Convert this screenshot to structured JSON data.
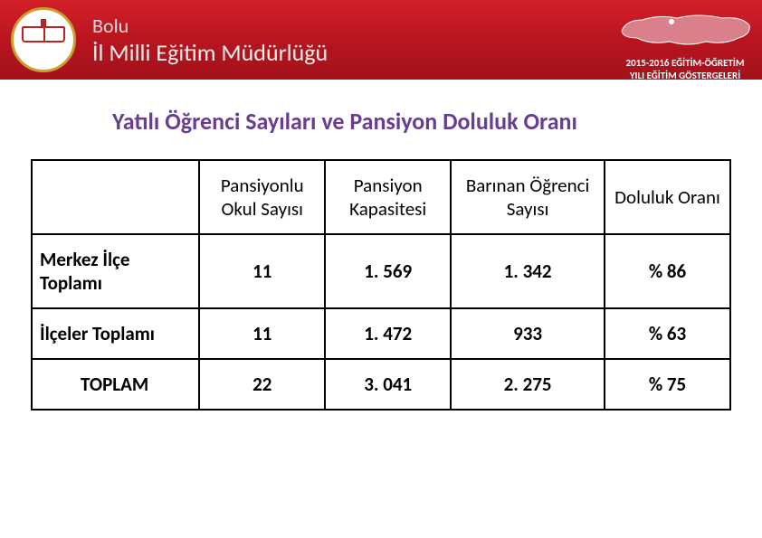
{
  "header": {
    "province": "Bolu",
    "org": "İl Milli Eğitim Müdürlüğü",
    "year_line1": "2015-2016 EĞİTİM-ÖĞRETİM",
    "year_line2": "YILI EĞİTİM GÖSTERGELERİ",
    "banner_gradient": [
      "#d32028",
      "#b8151f",
      "#a3121b"
    ],
    "logo_ring": "#c9a030",
    "logo_bg": "#ffffff"
  },
  "title": "Yatılı Öğrenci Sayıları ve Pansiyon Doluluk Oranı",
  "title_color": "#6a3d8f",
  "title_fontsize": 26,
  "table": {
    "columns": [
      "",
      "Pansiyonlu Okul Sayısı",
      "Pansiyon Kapasitesi",
      "Barınan Öğrenci Sayısı",
      "Doluluk Oranı"
    ],
    "column_widths_pct": [
      24,
      18,
      18,
      22,
      18
    ],
    "rows": [
      {
        "label": "Merkez İlçe Toplamı",
        "label_align": "left",
        "values": [
          "11",
          "1. 569",
          "1. 342",
          "% 86"
        ]
      },
      {
        "label": "İlçeler Toplamı",
        "label_align": "left",
        "values": [
          "11",
          "1. 472",
          "933",
          "% 63"
        ]
      },
      {
        "label": "TOPLAM",
        "label_align": "center",
        "values": [
          "22",
          "3. 041",
          "2. 275",
          "% 75"
        ]
      }
    ],
    "border_color": "#000000",
    "cell_fontsize": 21,
    "cell_fontweight_values": 700,
    "header_fontweight": 400,
    "background": "#ffffff"
  }
}
